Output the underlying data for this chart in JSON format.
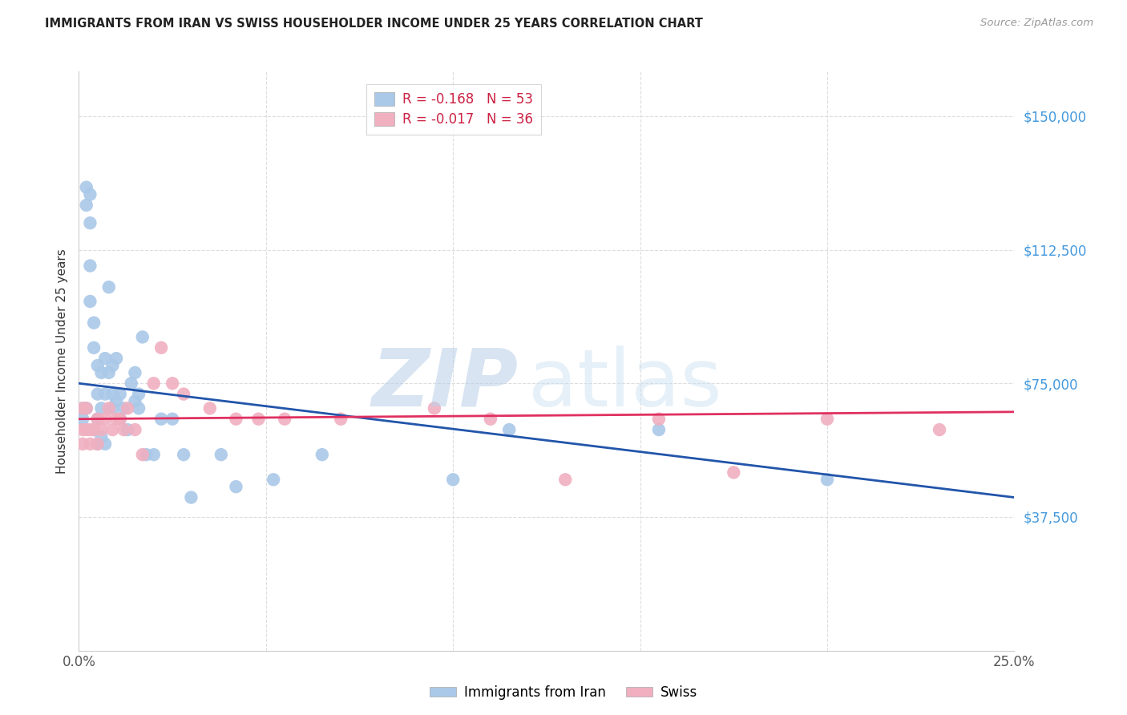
{
  "title": "IMMIGRANTS FROM IRAN VS SWISS HOUSEHOLDER INCOME UNDER 25 YEARS CORRELATION CHART",
  "source": "Source: ZipAtlas.com",
  "ylabel_label": "Householder Income Under 25 years",
  "xlim": [
    0.0,
    0.25
  ],
  "ylim": [
    0,
    162500
  ],
  "yticks": [
    37500,
    75000,
    112500,
    150000
  ],
  "ytick_labels": [
    "$37,500",
    "$75,000",
    "$112,500",
    "$150,000"
  ],
  "xtick_vals": [
    0.0,
    0.05,
    0.1,
    0.15,
    0.2,
    0.25
  ],
  "xtick_labels": [
    "0.0%",
    "",
    "",
    "",
    "",
    "25.0%"
  ],
  "iran_R": -0.168,
  "iran_N": 53,
  "swiss_R": -0.017,
  "swiss_N": 36,
  "iran_color": "#aac8e8",
  "iran_line_color": "#2255aa",
  "swiss_color": "#f0b0c0",
  "swiss_line_color": "#e03060",
  "legend_name_iran": "Immigrants from Iran",
  "legend_name_swiss": "Swiss",
  "watermark_zip": "ZIP",
  "watermark_atlas": "atlas",
  "background_color": "#ffffff",
  "grid_color": "#dddddd",
  "iran_x": [
    0.001,
    0.001,
    0.002,
    0.002,
    0.002,
    0.003,
    0.003,
    0.003,
    0.003,
    0.004,
    0.004,
    0.004,
    0.005,
    0.005,
    0.005,
    0.005,
    0.006,
    0.006,
    0.006,
    0.007,
    0.007,
    0.007,
    0.008,
    0.008,
    0.009,
    0.009,
    0.009,
    0.01,
    0.01,
    0.011,
    0.011,
    0.012,
    0.013,
    0.014,
    0.015,
    0.015,
    0.016,
    0.016,
    0.017,
    0.018,
    0.02,
    0.022,
    0.025,
    0.028,
    0.03,
    0.038,
    0.042,
    0.052,
    0.065,
    0.1,
    0.115,
    0.155,
    0.2
  ],
  "iran_y": [
    68000,
    65000,
    130000,
    125000,
    68000,
    128000,
    120000,
    108000,
    98000,
    92000,
    85000,
    62000,
    80000,
    72000,
    65000,
    58000,
    78000,
    68000,
    60000,
    82000,
    72000,
    58000,
    78000,
    102000,
    80000,
    72000,
    68000,
    82000,
    70000,
    72000,
    65000,
    68000,
    62000,
    75000,
    78000,
    70000,
    72000,
    68000,
    88000,
    55000,
    55000,
    65000,
    65000,
    55000,
    43000,
    55000,
    46000,
    48000,
    55000,
    48000,
    62000,
    62000,
    48000
  ],
  "swiss_x": [
    0.001,
    0.001,
    0.001,
    0.002,
    0.002,
    0.003,
    0.003,
    0.004,
    0.005,
    0.005,
    0.006,
    0.007,
    0.008,
    0.009,
    0.01,
    0.011,
    0.012,
    0.013,
    0.015,
    0.017,
    0.02,
    0.022,
    0.025,
    0.028,
    0.035,
    0.042,
    0.048,
    0.055,
    0.07,
    0.095,
    0.11,
    0.13,
    0.155,
    0.175,
    0.2,
    0.23
  ],
  "swiss_y": [
    68000,
    62000,
    58000,
    68000,
    62000,
    62000,
    58000,
    62000,
    65000,
    58000,
    62000,
    65000,
    68000,
    62000,
    65000,
    65000,
    62000,
    68000,
    62000,
    55000,
    75000,
    85000,
    75000,
    72000,
    68000,
    65000,
    65000,
    65000,
    65000,
    68000,
    65000,
    48000,
    65000,
    50000,
    65000,
    62000
  ]
}
